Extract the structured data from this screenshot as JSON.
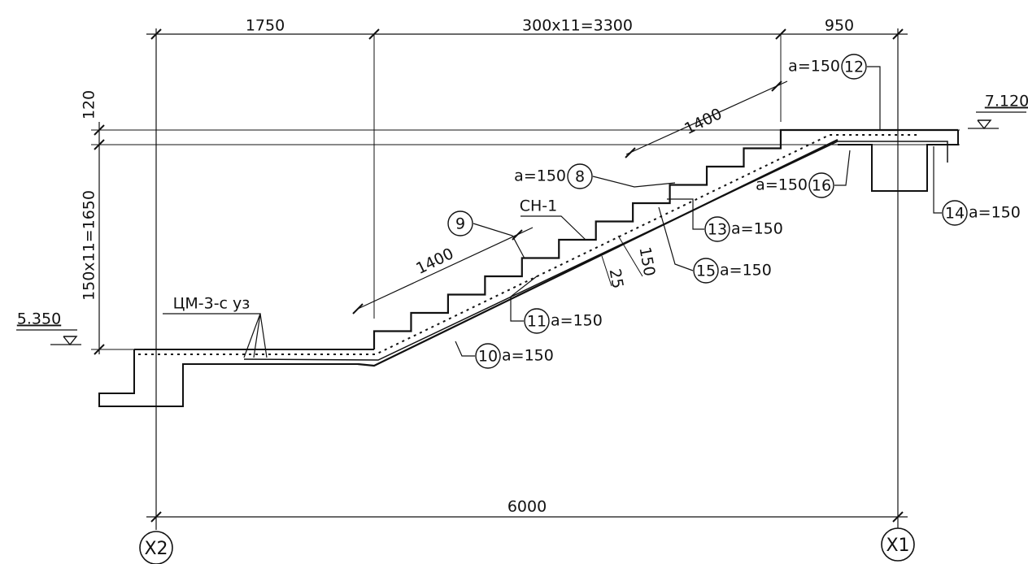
{
  "dimensions": {
    "top": [
      "1750",
      "300x11=3300",
      "950"
    ],
    "left": [
      "120",
      "150x11=1650"
    ],
    "bottom": "6000",
    "slope_upper": "1400",
    "slope_lower": "1400",
    "step_height": "150",
    "cover": "25"
  },
  "levels": [
    "5.350",
    "7.120"
  ],
  "callouts": [
    {
      "number": "12",
      "label": "a=150"
    },
    {
      "number": "8",
      "label": "a=150"
    },
    {
      "number": "16",
      "label": "a=150"
    },
    {
      "number": "13",
      "label": "a=150"
    },
    {
      "number": "14",
      "label": "a=150"
    },
    {
      "number": "15",
      "label": "a=150"
    },
    {
      "number": "11",
      "label": "a=150"
    },
    {
      "number": "10",
      "label": "a=150"
    },
    {
      "number": "9"
    }
  ],
  "notes": [
    "СН-1",
    "ЦМ-3-с уз"
  ],
  "axes": [
    "X2",
    "X1"
  ]
}
